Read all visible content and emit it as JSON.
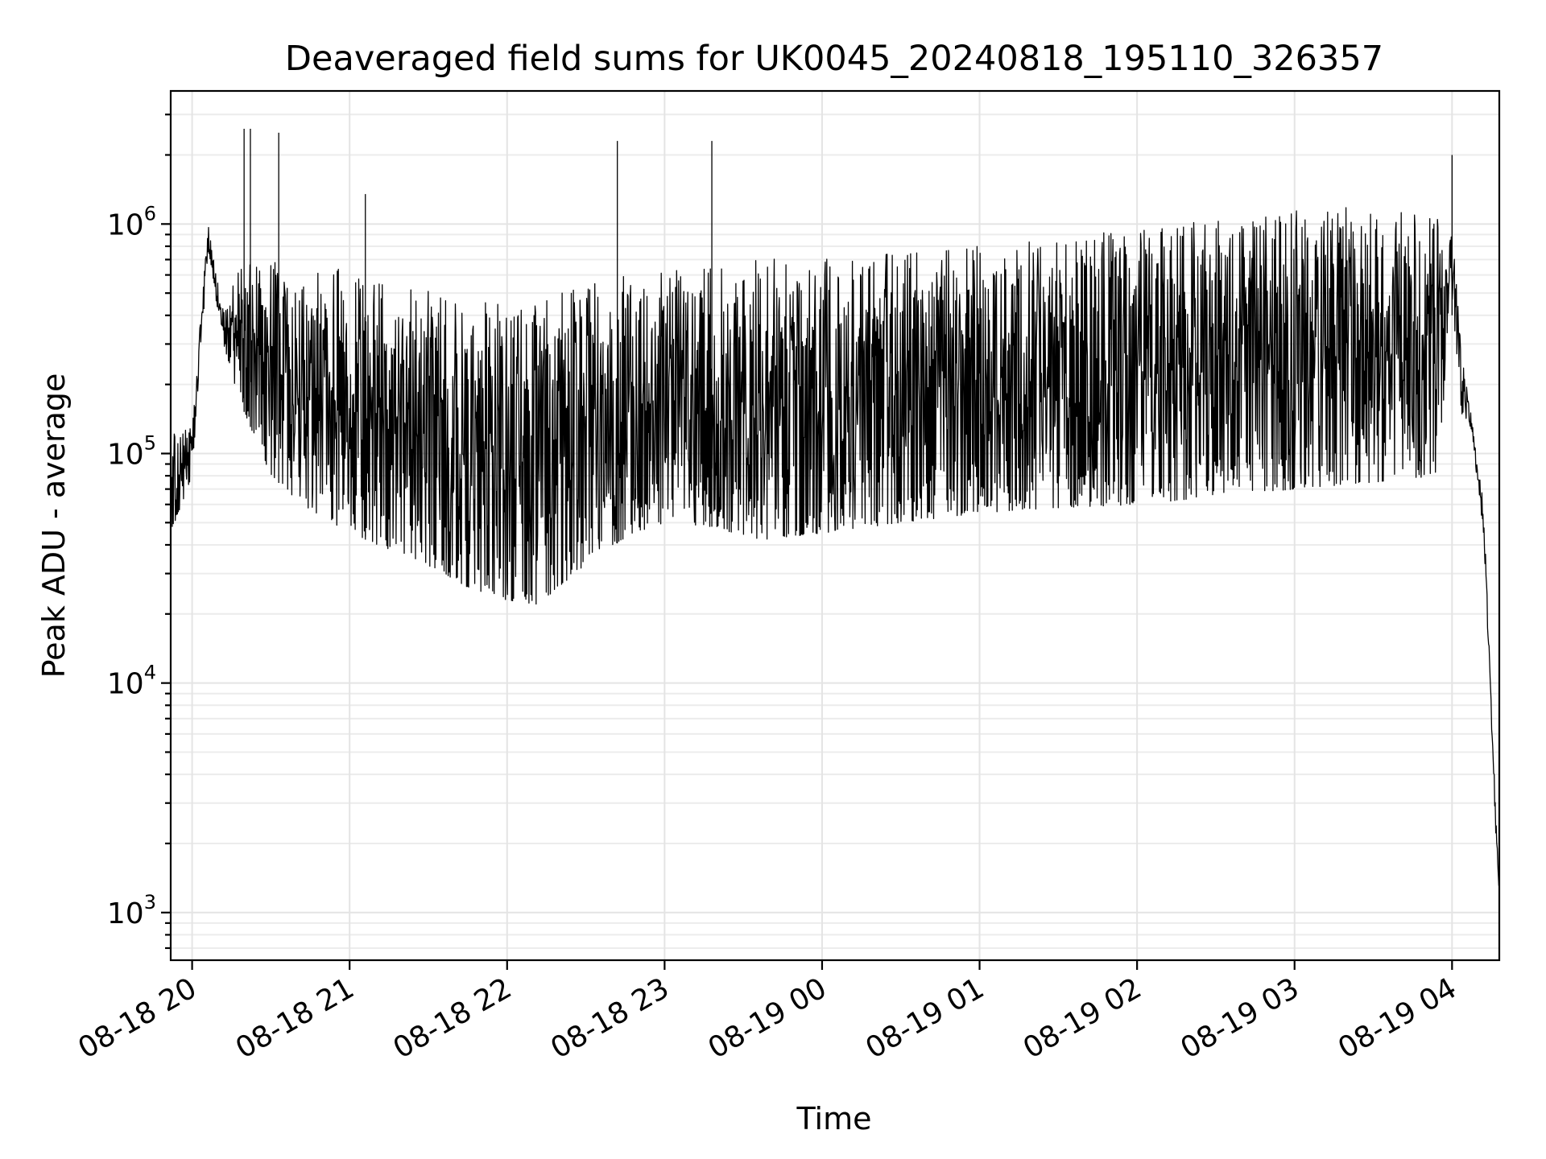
{
  "chart_data": {
    "type": "line",
    "title": "Deaveraged field sums for UK0045_20240818_195110_326357",
    "xlabel": "Time",
    "ylabel": "Peak ADU - average",
    "x_tick_labels": [
      "08-18 20",
      "08-18 21",
      "08-18 22",
      "08-18 23",
      "08-19 00",
      "08-19 01",
      "08-19 02",
      "08-19 03",
      "08-19 04"
    ],
    "x_ticks_hours": [
      0,
      1,
      2,
      3,
      4,
      5,
      6,
      7,
      8
    ],
    "xlim_hours": [
      -0.136,
      8.3
    ],
    "y_scale": "log",
    "y_tick_values": [
      1000,
      10000,
      100000,
      1000000
    ],
    "y_tick_base": "10",
    "y_tick_exponents": [
      "3",
      "4",
      "5",
      "6"
    ],
    "ylim": [
      620,
      3800000
    ],
    "grid": true,
    "line_color": "#000000",
    "series": [
      {
        "envelope_hours": [
          -0.136,
          0.0,
          0.1,
          0.2,
          0.3,
          0.5,
          0.7,
          1.0,
          1.3,
          1.6,
          1.8,
          2.0,
          2.2,
          2.5,
          2.8,
          3.0,
          3.3,
          3.6,
          4.0,
          4.5,
          5.0,
          5.5,
          6.0,
          6.5,
          7.0,
          7.5,
          7.9,
          8.0,
          8.06,
          8.12,
          8.2,
          8.25,
          8.28,
          8.3
        ],
        "envelope_low": [
          45000,
          80000,
          750000,
          300000,
          170000,
          80000,
          60000,
          45000,
          37000,
          30000,
          25000,
          23000,
          22000,
          33000,
          45000,
          50000,
          48000,
          42000,
          45000,
          50000,
          55000,
          58000,
          60000,
          65000,
          70000,
          75000,
          80000,
          400000,
          150000,
          130000,
          45000,
          6000,
          2000,
          1200
        ],
        "envelope_high": [
          120000,
          130000,
          1000000,
          450000,
          650000,
          700000,
          600000,
          650000,
          550000,
          500000,
          470000,
          450000,
          480000,
          560000,
          600000,
          620000,
          660000,
          700000,
          720000,
          760000,
          800000,
          880000,
          950000,
          1050000,
          1150000,
          1200000,
          1100000,
          1000000,
          280000,
          150000,
          60000,
          8000,
          2500,
          1400
        ],
        "spikes": [
          {
            "x_hours": 0.33,
            "y": 2600000
          },
          {
            "x_hours": 0.37,
            "y": 2600000
          },
          {
            "x_hours": 0.55,
            "y": 2500000
          },
          {
            "x_hours": 1.1,
            "y": 1350000
          },
          {
            "x_hours": 2.7,
            "y": 2300000
          },
          {
            "x_hours": 3.3,
            "y": 2300000
          },
          {
            "x_hours": 8.0,
            "y": 2000000
          }
        ]
      }
    ]
  }
}
